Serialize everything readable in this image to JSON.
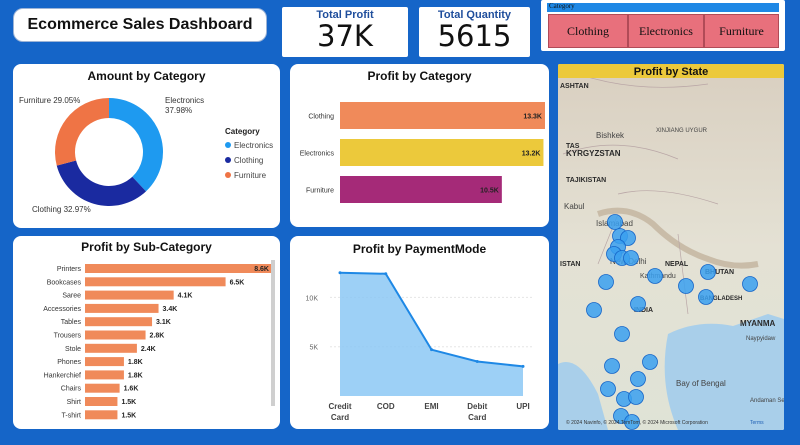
{
  "dashboard_title": "Ecommerce Sales Dashboard",
  "kpis": {
    "total_profit_label": "Total Profit",
    "total_profit_value": "37K",
    "total_quantity_label": "Total Quantity",
    "total_quantity_value": "5615"
  },
  "slicer": {
    "header": "Category",
    "options": [
      "Clothing",
      "Electronics",
      "Furniture"
    ]
  },
  "amount_by_category": {
    "title": "Amount by Category",
    "legend_title": "Category",
    "slices": [
      {
        "name": "Electronics",
        "percent": 37.98,
        "label": "Electronics",
        "pct_label": "37.98%",
        "color": "#1e9af0"
      },
      {
        "name": "Clothing",
        "percent": 32.97,
        "label": "Clothing 32.97%",
        "color": "#1a2aa0"
      },
      {
        "name": "Furniture",
        "percent": 29.05,
        "label": "Furniture 29.05%",
        "color": "#ef7445"
      }
    ]
  },
  "profit_by_category": {
    "title": "Profit by Category",
    "bars": [
      {
        "name": "Clothing",
        "value": 13.3,
        "label": "13.3K",
        "color": "#f08a5a"
      },
      {
        "name": "Electronics",
        "value": 13.2,
        "label": "13.2K",
        "color": "#ecc93b"
      },
      {
        "name": "Furniture",
        "value": 10.5,
        "label": "10.5K",
        "color": "#a52a78"
      }
    ]
  },
  "profit_by_subcategory": {
    "title": "Profit by Sub-Category",
    "color": "#f08a5a",
    "bars": [
      {
        "name": "Printers",
        "value": 8.6,
        "label": "8.6K"
      },
      {
        "name": "Bookcases",
        "value": 6.5,
        "label": "6.5K"
      },
      {
        "name": "Saree",
        "value": 4.1,
        "label": "4.1K"
      },
      {
        "name": "Accessories",
        "value": 3.4,
        "label": "3.4K"
      },
      {
        "name": "Tables",
        "value": 3.1,
        "label": "3.1K"
      },
      {
        "name": "Trousers",
        "value": 2.8,
        "label": "2.8K"
      },
      {
        "name": "Stole",
        "value": 2.4,
        "label": "2.4K"
      },
      {
        "name": "Phones",
        "value": 1.8,
        "label": "1.8K"
      },
      {
        "name": "Hankerchief",
        "value": 1.8,
        "label": "1.8K"
      },
      {
        "name": "Chairs",
        "value": 1.6,
        "label": "1.6K"
      },
      {
        "name": "Shirt",
        "value": 1.5,
        "label": "1.5K"
      },
      {
        "name": "T-shirt",
        "value": 1.5,
        "label": "1.5K"
      }
    ]
  },
  "chart_data": [
    {
      "type": "pie",
      "title": "Amount by Category",
      "categories": [
        "Electronics",
        "Clothing",
        "Furniture"
      ],
      "values": [
        37.98,
        32.97,
        29.05
      ]
    },
    {
      "type": "bar",
      "title": "Profit by Category",
      "categories": [
        "Clothing",
        "Electronics",
        "Furniture"
      ],
      "values": [
        13.3,
        13.2,
        10.5
      ]
    },
    {
      "type": "bar",
      "title": "Profit by Sub-Category",
      "categories": [
        "Printers",
        "Bookcases",
        "Saree",
        "Accessories",
        "Tables",
        "Trousers",
        "Stole",
        "Phones",
        "Hankerchief",
        "Chairs",
        "Shirt",
        "T-shirt"
      ],
      "values": [
        8.6,
        6.5,
        4.1,
        3.4,
        3.1,
        2.8,
        2.4,
        1.8,
        1.8,
        1.6,
        1.5,
        1.5
      ]
    },
    {
      "type": "area",
      "title": "Profit by PaymentMode",
      "categories": [
        "Credit Card",
        "COD",
        "EMI",
        "Debit Card",
        "UPI"
      ],
      "values": [
        12.5,
        12.4,
        4.7,
        3.5,
        3.0
      ],
      "yticks": [
        "5K",
        "10K"
      ],
      "ylim": [
        0,
        14
      ]
    }
  ],
  "payment_mode": {
    "title": "Profit by PaymentMode",
    "color": "#1e88e5",
    "fill": "#8cc8f5",
    "points": [
      {
        "name": "Credit Card",
        "line1": "Credit",
        "line2": "Card",
        "value": 12.5
      },
      {
        "name": "COD",
        "line1": "COD",
        "line2": "",
        "value": 12.4
      },
      {
        "name": "EMI",
        "line1": "EMI",
        "line2": "",
        "value": 4.7
      },
      {
        "name": "Debit Card",
        "line1": "Debit",
        "line2": "Card",
        "value": 3.5
      },
      {
        "name": "UPI",
        "line1": "UPI",
        "line2": "",
        "value": 3.0
      }
    ],
    "yticks": [
      {
        "value": 5,
        "label": "5K"
      },
      {
        "value": 10,
        "label": "10K"
      }
    ],
    "ymax": 14
  },
  "profit_by_state": {
    "title": "Profit by State",
    "map_labels": [
      "ASHTAN",
      "Bishkek",
      "KYRGYZSTAN",
      "XINJIANG UYGUR",
      "TAS",
      "TAJIKISTAN",
      "Kabul",
      "Islamabad",
      "ISTAN",
      "New Delhi",
      "NEPAL",
      "Kathmandu",
      "BHUTAN",
      "BANGLADESH",
      "INDIA",
      "MYANMA",
      "Naypyidaw",
      "Bay of Bengal",
      "Andaman Sea"
    ],
    "attribution": "© 2024 Navinfo, © 2024 TomTom, © 2024 Microsoft Corporation",
    "terms": "Terms"
  }
}
